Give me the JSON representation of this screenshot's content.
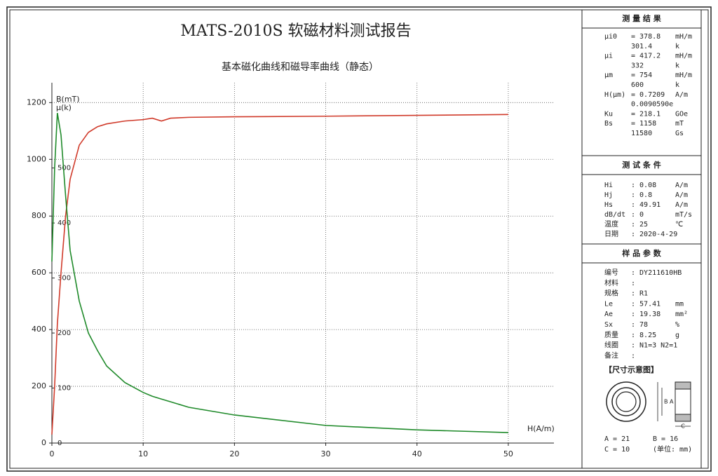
{
  "chart_data": {
    "type": "line",
    "title": "MATS-2010S 软磁材料测试报告",
    "subtitle": "基本磁化曲线和磁导率曲线（静态）",
    "x_label": "H(A/m)",
    "y_label": "B(mT)",
    "y2_label": "μ(k)",
    "x": [
      0,
      0.3,
      0.6,
      1,
      1.5,
      2,
      3,
      4,
      5,
      6,
      8,
      10,
      11,
      12,
      13,
      15,
      20,
      30,
      40,
      50
    ],
    "series": [
      {
        "name": "B(mT)",
        "color": "#d03a2a",
        "values": [
          30,
          200,
          420,
          600,
          800,
          930,
          1050,
          1095,
          1115,
          1125,
          1135,
          1140,
          1145,
          1135,
          1145,
          1148,
          1150,
          1152,
          1155,
          1158
        ]
      },
      {
        "name": "μ(k)",
        "color": "#1f8a2a",
        "axis": "y2",
        "values": [
          330,
          500,
          600,
          560,
          450,
          350,
          258,
          200,
          168,
          140,
          110,
          92,
          85,
          80,
          75,
          65,
          51,
          32,
          24,
          19
        ]
      }
    ],
    "xlim": [
      0,
      55
    ],
    "xticks": [
      0,
      10,
      20,
      30,
      40,
      50
    ],
    "ylim": [
      0,
      1270
    ],
    "yticks": [
      0,
      200,
      400,
      600,
      800,
      1000,
      1200
    ],
    "y2lim": [
      0,
      655
    ],
    "y2ticks": [
      0,
      100,
      200,
      300,
      400,
      500
    ],
    "grid": true
  },
  "panel": {
    "sections": [
      {
        "title": "测 量 结 果",
        "rows": [
          {
            "label": "μi0",
            "value": "= 378.8",
            "unit": "mH/m"
          },
          {
            "value": "301.4",
            "unit": "k"
          },
          {
            "label": "μi",
            "value": "= 417.2",
            "unit": "mH/m"
          },
          {
            "value": "332",
            "unit": "k"
          },
          {
            "label": "μm",
            "value": "= 754",
            "unit": "mH/m"
          },
          {
            "value": "600",
            "unit": "k"
          },
          {
            "label": "H(μm)",
            "value": "= 0.7209",
            "unit": "A/m"
          },
          {
            "value": "0.0090590e"
          },
          {
            "label": "Ku",
            "value": "= 218.1",
            "unit": "GOe"
          },
          {
            "label": "Bs",
            "value": "= 1158",
            "unit": "mT"
          },
          {
            "value": "11580",
            "unit": "Gs"
          }
        ]
      },
      {
        "title": "测 试 条 件",
        "rows": [
          {
            "label": "Hi",
            "value": ": 0.08",
            "unit": "A/m"
          },
          {
            "label": "Hj",
            "value": ": 0.8",
            "unit": "A/m"
          },
          {
            "label": "Hs",
            "value": ": 49.91",
            "unit": "A/m"
          },
          {
            "label": "dB/dt",
            "value": ": 0",
            "unit": "mT/s"
          },
          {
            "label": "温度",
            "value": ": 25",
            "unit": "℃"
          },
          {
            "label": "日期",
            "value": ": 2020-4-29"
          }
        ]
      },
      {
        "title": "样 品 参 数",
        "rows": [
          {
            "label": "编号",
            "value": ": DY211610HB"
          },
          {
            "label": "材料",
            "value": ":"
          },
          {
            "label": "规格",
            "value": ": R1"
          },
          {
            "label": "Le",
            "value": ": 57.41",
            "unit": "mm"
          },
          {
            "label": "Ae",
            "value": ": 19.38",
            "unit": "mm²"
          },
          {
            "label": "Sx",
            "value": ": 78",
            "unit": "%"
          },
          {
            "label": "质量",
            "value": ": 8.25",
            "unit": "g"
          },
          {
            "label": "线圈",
            "value": ": N1=3 N2=1"
          },
          {
            "label": "备注",
            "value": ":"
          }
        ]
      }
    ],
    "diagram": {
      "title": "【尺寸示意图】",
      "label_ba": "B A",
      "label_c": "C",
      "footer": [
        "A = 21",
        "B = 16",
        "C = 10",
        "(单位: mm)"
      ]
    }
  }
}
